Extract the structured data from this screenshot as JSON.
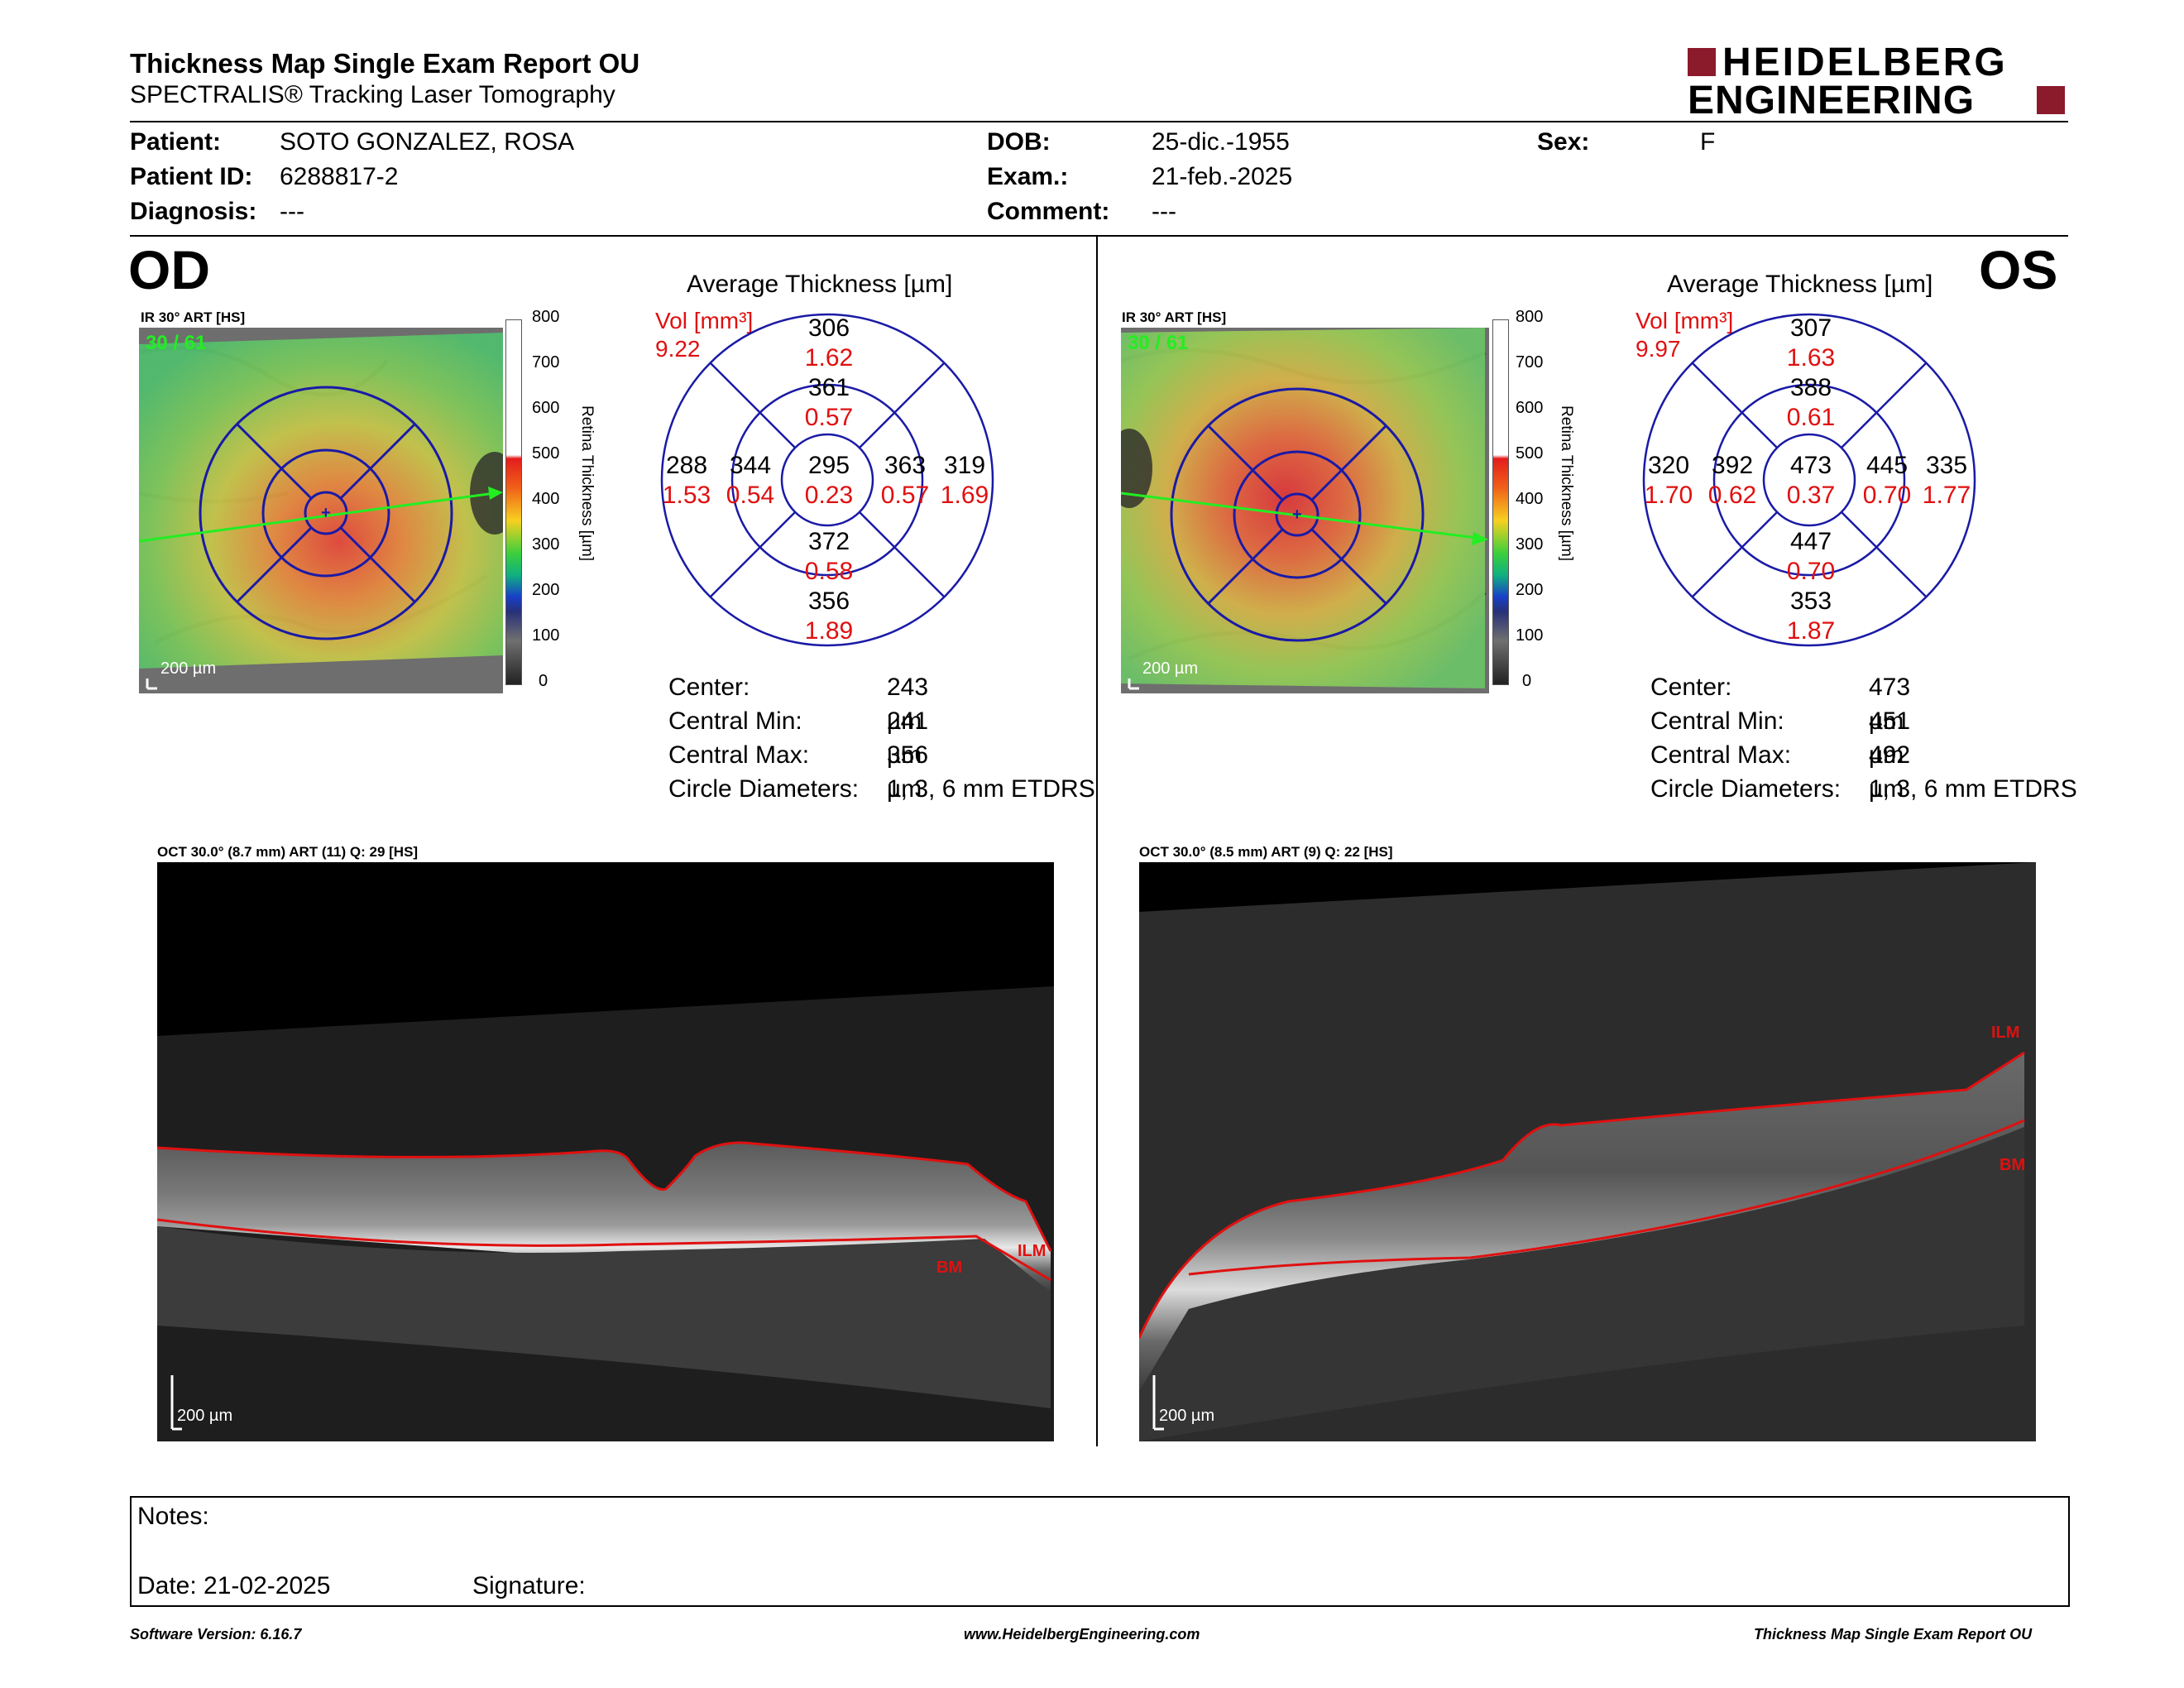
{
  "header": {
    "title": "Thickness Map Single Exam Report OU",
    "subtitle": "SPECTRALIS® Tracking Laser Tomography",
    "logo_line1": "HEIDELBERG",
    "logo_line2": "ENGINEERING",
    "brand_color": "#8b1a2b"
  },
  "patient": {
    "patient_label": "Patient:",
    "patient_value": "SOTO GONZALEZ, ROSA",
    "id_label": "Patient ID:",
    "id_value": "6288817-2",
    "diag_label": "Diagnosis:",
    "diag_value": "---",
    "dob_label": "DOB:",
    "dob_value": "25-dic.-1955",
    "exam_label": "Exam.:",
    "exam_value": "21-feb.-2025",
    "comment_label": "Comment:",
    "comment_value": "---",
    "sex_label": "Sex:",
    "sex_value": "F"
  },
  "od": {
    "eye": "OD",
    "ir_caption": "IR 30° ART [HS]",
    "frames": "30 / 61",
    "scale": "200 µm",
    "colorbar_ticks": [
      "800",
      "700",
      "600",
      "500",
      "400",
      "300",
      "200",
      "100",
      "0"
    ],
    "colorbar_label": "Retina Thickness [µm]",
    "avg_title": "Average Thickness [µm]",
    "vol_label": "Vol [mm³]",
    "vol_value": "9.22",
    "sectors": {
      "outer_top": {
        "t": "306",
        "v": "1.62"
      },
      "inner_top": {
        "t": "361",
        "v": "0.57"
      },
      "outer_left": {
        "t": "288",
        "v": "1.53"
      },
      "inner_left": {
        "t": "344",
        "v": "0.54"
      },
      "center": {
        "t": "295",
        "v": "0.23"
      },
      "inner_right": {
        "t": "363",
        "v": "0.57"
      },
      "outer_right": {
        "t": "319",
        "v": "1.69"
      },
      "inner_bottom": {
        "t": "372",
        "v": "0.58"
      },
      "outer_bottom": {
        "t": "356",
        "v": "1.89"
      }
    },
    "stats": [
      {
        "label": "Center:",
        "value": "243 µm"
      },
      {
        "label": "Central Min:",
        "value": "241 µm"
      },
      {
        "label": "Central Max:",
        "value": "356 µm"
      },
      {
        "label": "Circle Diameters:",
        "value": "1, 3, 6 mm ETDRS"
      }
    ],
    "oct_caption": "OCT 30.0° (8.7 mm) ART (11) Q: 29 [HS]",
    "oct_scale": "200 µm",
    "ilm": "ILM",
    "bm": "BM"
  },
  "os": {
    "eye": "OS",
    "ir_caption": "IR 30° ART [HS]",
    "frames": "30 / 61",
    "scale": "200 µm",
    "colorbar_ticks": [
      "800",
      "700",
      "600",
      "500",
      "400",
      "300",
      "200",
      "100",
      "0"
    ],
    "colorbar_label": "Retina Thickness [µm]",
    "avg_title": "Average Thickness [µm]",
    "vol_label": "Vol [mm³]",
    "vol_value": "9.97",
    "sectors": {
      "outer_top": {
        "t": "307",
        "v": "1.63"
      },
      "inner_top": {
        "t": "388",
        "v": "0.61"
      },
      "outer_left": {
        "t": "320",
        "v": "1.70"
      },
      "inner_left": {
        "t": "392",
        "v": "0.62"
      },
      "center": {
        "t": "473",
        "v": "0.37"
      },
      "inner_right": {
        "t": "445",
        "v": "0.70"
      },
      "outer_right": {
        "t": "335",
        "v": "1.77"
      },
      "inner_bottom": {
        "t": "447",
        "v": "0.70"
      },
      "outer_bottom": {
        "t": "353",
        "v": "1.87"
      }
    },
    "stats": [
      {
        "label": "Center:",
        "value": "473 µm"
      },
      {
        "label": "Central Min:",
        "value": "451 µm"
      },
      {
        "label": "Central Max:",
        "value": "492 µm"
      },
      {
        "label": "Circle Diameters:",
        "value": "1, 3, 6 mm ETDRS"
      }
    ],
    "oct_caption": "OCT 30.0° (8.5 mm) ART (9) Q: 22 [HS]",
    "oct_scale": "200 µm",
    "ilm": "ILM",
    "bm": "BM"
  },
  "notes": {
    "notes_label": "Notes:",
    "date_label": "Date: 21-02-2025",
    "signature_label": "Signature:"
  },
  "footer": {
    "left": "Software Version: 6.16.7",
    "center": "www.HeidelbergEngineering.com",
    "right": "Thickness Map Single Exam Report OU"
  },
  "colors": {
    "grid_blue": "#1a1aa6",
    "value_red": "#e01010",
    "scan_green": "#22ee22",
    "seg_red": "#e01010"
  }
}
